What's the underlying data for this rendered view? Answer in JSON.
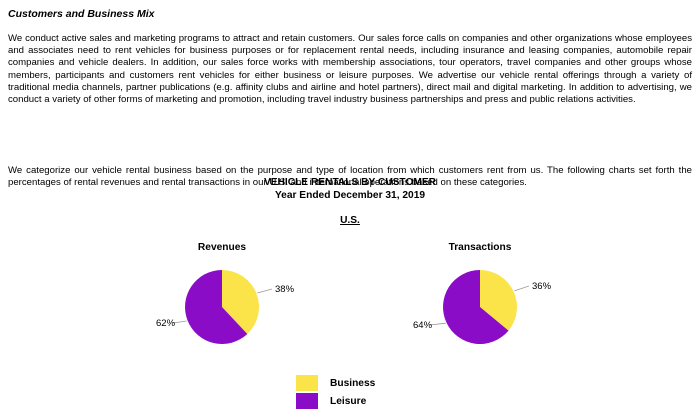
{
  "section": {
    "heading": "Customers and Business Mix",
    "paragraph1": "We conduct active sales and marketing programs to attract and retain customers. Our sales force calls on companies and other organizations whose employees and associates need to rent vehicles for business purposes or for replacement rental needs, including insurance and leasing companies, automobile repair companies and vehicle dealers. In addition, our sales force works with membership associations, tour operators, travel companies and other groups whose members, participants and customers rent vehicles for either business or leisure purposes. We advertise our vehicle rental offerings through a variety of traditional media channels, partner publications (e.g. affinity clubs and airline and hotel partners), direct mail and digital marketing. In addition to advertising, we conduct a variety of other forms of marketing and promotion, including travel industry business partnerships and press and public relations activities.",
    "paragraph2": "We categorize our vehicle rental business based on the purpose and type of location from which customers rent from us. The following charts set forth the percentages of rental revenues and rental transactions in our U.S. and international operations based on these categories."
  },
  "chart_header": {
    "title": "VEHICLE RENTALS BY CUSTOMER",
    "subtitle": "Year Ended December 31, 2019",
    "region": "U.S."
  },
  "colors": {
    "business": "#fbe34a",
    "leisure": "#8b0cc7",
    "leader": "#999999"
  },
  "chart_data": [
    {
      "type": "pie",
      "title": "Revenues",
      "labels": [
        "Business",
        "Leisure"
      ],
      "values": [
        38,
        62
      ],
      "value_labels": [
        "38%",
        "62%"
      ]
    },
    {
      "type": "pie",
      "title": "Transactions",
      "labels": [
        "Business",
        "Leisure"
      ],
      "values": [
        36,
        64
      ],
      "value_labels": [
        "36%",
        "64%"
      ]
    }
  ],
  "legend": [
    {
      "label": "Business"
    },
    {
      "label": "Leisure"
    }
  ]
}
